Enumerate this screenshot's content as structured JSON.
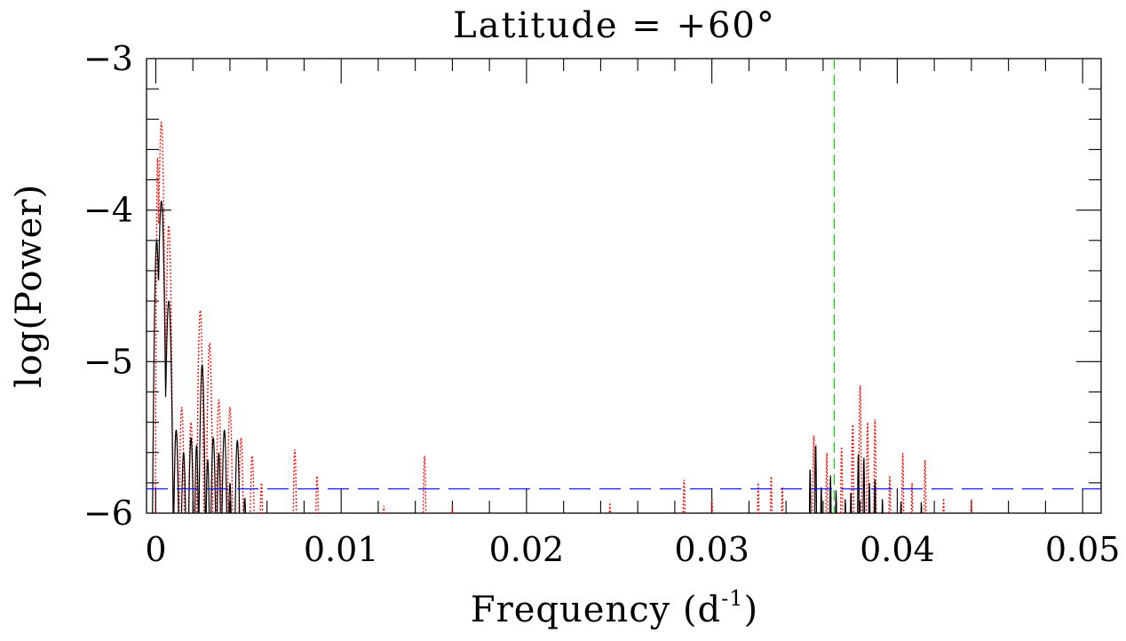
{
  "chart_data": {
    "type": "line",
    "title": "Latitude = +60°",
    "xlabel": "Frequency (d",
    "xlabel_superscript": "-1",
    "xlabel_close": ")",
    "ylabel": "log(Power)",
    "xlim": [
      -0.0005,
      0.051
    ],
    "ylim": [
      -6,
      -3
    ],
    "x_ticks": [
      {
        "value": 0,
        "label": "0"
      },
      {
        "value": 0.01,
        "label": "0.01"
      },
      {
        "value": 0.02,
        "label": "0.02"
      },
      {
        "value": 0.03,
        "label": "0.03"
      },
      {
        "value": 0.04,
        "label": "0.04"
      },
      {
        "value": 0.05,
        "label": "0.05"
      }
    ],
    "y_ticks": [
      {
        "value": -3,
        "label": "−3"
      },
      {
        "value": -4,
        "label": "−4"
      },
      {
        "value": -5,
        "label": "−5"
      },
      {
        "value": -6,
        "label": "−6"
      }
    ],
    "x_minor_step": 0.002,
    "y_minor_step": 0.2,
    "grid": false,
    "colors": {
      "solid": "#000000",
      "dotted": "#ff0000",
      "threshold": "#0000ff",
      "marker": "#00cc00"
    },
    "threshold_line": {
      "y": -5.84
    },
    "vertical_marker": {
      "x": 0.0366
    },
    "series": [
      {
        "style": "solid",
        "peaks": [
          [
            5e-05,
            -4.2,
            0.00025
          ],
          [
            0.0003,
            -3.94,
            0.0003
          ],
          [
            0.0007,
            -4.6,
            0.0003
          ],
          [
            0.0011,
            -5.45,
            0.00025
          ],
          [
            0.0015,
            -5.6,
            0.00025
          ],
          [
            0.0019,
            -5.5,
            0.00025
          ],
          [
            0.0022,
            -5.55,
            0.0002
          ],
          [
            0.0025,
            -5.02,
            0.00025
          ],
          [
            0.0028,
            -5.65,
            0.0002
          ],
          [
            0.0031,
            -5.5,
            0.00025
          ],
          [
            0.0034,
            -5.6,
            0.0002
          ],
          [
            0.0037,
            -5.45,
            0.00025
          ],
          [
            0.004,
            -5.8,
            0.0002
          ],
          [
            0.0044,
            -5.52,
            0.00025
          ],
          [
            0.0048,
            -5.9,
            0.0002
          ],
          [
            0.0353,
            -5.7,
            0.0001
          ],
          [
            0.0356,
            -5.54,
            0.0001
          ],
          [
            0.0359,
            -5.82,
            0.0001
          ],
          [
            0.0364,
            -5.75,
            0.0001
          ],
          [
            0.0367,
            -5.85,
            0.0001
          ],
          [
            0.0372,
            -5.9,
            0.0001
          ],
          [
            0.0375,
            -5.85,
            0.0001
          ],
          [
            0.0379,
            -5.6,
            0.0001
          ],
          [
            0.0382,
            -5.63,
            0.0001
          ],
          [
            0.0385,
            -5.8,
            0.0001
          ],
          [
            0.0388,
            -5.78,
            0.0001
          ],
          [
            0.0392,
            -5.9,
            0.0001
          ],
          [
            0.0402,
            -5.92,
            0.0001
          ],
          [
            0.0413,
            -5.92,
            0.0001
          ]
        ]
      },
      {
        "style": "dotted",
        "peaks": [
          [
            0.0001,
            -3.65,
            0.00012
          ],
          [
            0.0003,
            -3.42,
            0.00025
          ],
          [
            0.0007,
            -4.1,
            0.00025
          ],
          [
            0.0011,
            -5.45,
            0.00025
          ],
          [
            0.0014,
            -5.3,
            0.00025
          ],
          [
            0.0019,
            -5.4,
            0.00025
          ],
          [
            0.0024,
            -4.66,
            0.00025
          ],
          [
            0.0029,
            -4.88,
            0.00025
          ],
          [
            0.0034,
            -5.25,
            0.00025
          ],
          [
            0.004,
            -5.3,
            0.00025
          ],
          [
            0.0046,
            -5.5,
            0.00025
          ],
          [
            0.0052,
            -5.62,
            0.00025
          ],
          [
            0.0057,
            -5.8,
            0.0002
          ],
          [
            0.0075,
            -5.58,
            0.0002
          ],
          [
            0.0087,
            -5.75,
            0.0002
          ],
          [
            0.0123,
            -5.95,
            0.00015
          ],
          [
            0.0145,
            -5.62,
            0.00018
          ],
          [
            0.016,
            -5.95,
            0.00015
          ],
          [
            0.0245,
            -5.93,
            0.00015
          ],
          [
            0.0285,
            -5.78,
            0.00015
          ],
          [
            0.03,
            -5.9,
            0.00015
          ],
          [
            0.0325,
            -5.8,
            0.00012
          ],
          [
            0.0332,
            -5.75,
            0.00012
          ],
          [
            0.0338,
            -5.82,
            0.00012
          ],
          [
            0.0355,
            -5.48,
            0.00012
          ],
          [
            0.0362,
            -5.6,
            0.00012
          ],
          [
            0.037,
            -5.56,
            0.00012
          ],
          [
            0.0376,
            -5.4,
            0.00012
          ],
          [
            0.038,
            -5.15,
            0.00012
          ],
          [
            0.0384,
            -5.4,
            0.00012
          ],
          [
            0.0388,
            -5.38,
            0.00012
          ],
          [
            0.0396,
            -5.75,
            0.00012
          ],
          [
            0.0403,
            -5.6,
            0.00012
          ],
          [
            0.0408,
            -5.8,
            0.00012
          ],
          [
            0.0415,
            -5.64,
            0.00012
          ],
          [
            0.0425,
            -5.9,
            0.00012
          ],
          [
            0.044,
            -5.9,
            0.00012
          ]
        ]
      }
    ]
  }
}
